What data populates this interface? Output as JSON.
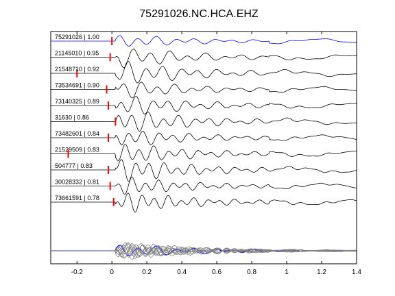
{
  "chart_data": {
    "type": "line",
    "title": "75291026.NC.HCA.EHZ",
    "xlabel": "",
    "ylabel": "",
    "xlim": [
      -0.35,
      1.4
    ],
    "x_ticks": [
      -0.2,
      0,
      0.2,
      0.4,
      0.6,
      0.8,
      1,
      1.2,
      1.4
    ],
    "x_tick_labels": [
      "-0.2",
      "0",
      "0.2",
      "0.4",
      "0.6",
      "0.8",
      "1",
      "1.2",
      "1.4"
    ],
    "grid": false,
    "colors": {
      "reference": "#0000ff",
      "trace": "#000000",
      "stack": "#808080",
      "pick": "#ff0000"
    },
    "series": [
      {
        "name": "75291026 | 1.00",
        "pick_time": 0.0,
        "reference": true
      },
      {
        "name": "21145010 | 0.95",
        "pick_time": -0.01
      },
      {
        "name": "21548710 | 0.92",
        "pick_time": -0.2
      },
      {
        "name": "73534691 | 0.90",
        "pick_time": -0.03
      },
      {
        "name": "73140325 | 0.89",
        "pick_time": -0.02
      },
      {
        "name": "31630 | 0.86",
        "pick_time": 0.02
      },
      {
        "name": "73482601 | 0.84",
        "pick_time": -0.02
      },
      {
        "name": "21529509 | 0.83",
        "pick_time": -0.25
      },
      {
        "name": "504777 | 0.83",
        "pick_time": -0.02
      },
      {
        "name": "30028332 | 0.81",
        "pick_time": -0.01
      },
      {
        "name": "73661591 | 0.78",
        "pick_time": 0.01
      }
    ],
    "overlay": {
      "description": "all traces overlaid with reference",
      "trace_count": 11
    }
  }
}
